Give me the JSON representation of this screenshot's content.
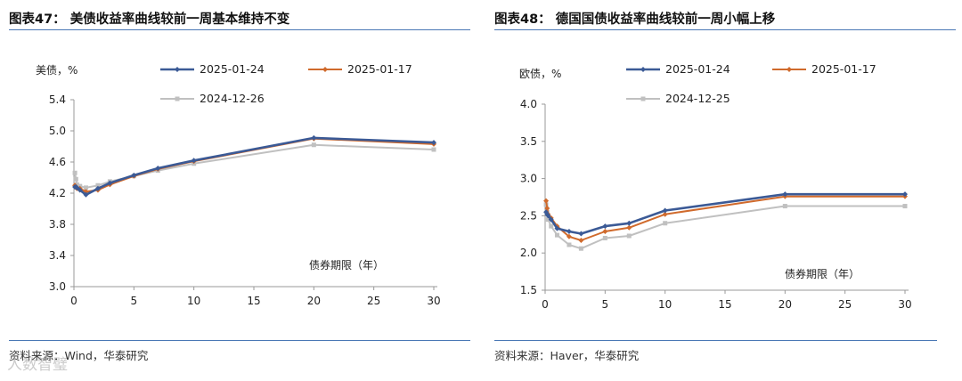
{
  "chart_data": [
    {
      "type": "line",
      "title": "图表47： 美债收益率曲线较前一周基本维持不变",
      "ylabel": "美债，%",
      "xlabel": "债券期限（年）",
      "source": "资料来源：Wind，华泰研究",
      "xlim": [
        0,
        30
      ],
      "ylim": [
        3.0,
        5.4
      ],
      "xticks": [
        0,
        5,
        10,
        15,
        20,
        25,
        30
      ],
      "yticks": [
        3.0,
        3.4,
        3.8,
        4.2,
        4.6,
        5.0,
        5.4
      ],
      "ytick_labels": [
        "3.0",
        "3.4",
        "3.8",
        "4.2",
        "4.6",
        "5.0",
        "5.4"
      ],
      "legend": "top",
      "x": [
        0.08,
        0.17,
        0.25,
        0.5,
        1,
        2,
        3,
        5,
        7,
        10,
        20,
        30
      ],
      "series": [
        {
          "name": "2025-01-24",
          "color": "#3b5a96",
          "values": [
            4.28,
            4.28,
            4.27,
            4.24,
            4.18,
            4.26,
            4.33,
            4.43,
            4.52,
            4.62,
            4.91,
            4.85
          ]
        },
        {
          "name": "2025-01-17",
          "color": "#d06a2c",
          "values": [
            4.3,
            4.28,
            4.26,
            4.26,
            4.22,
            4.24,
            4.31,
            4.42,
            4.51,
            4.61,
            4.9,
            4.83
          ]
        },
        {
          "name": "2024-12-26",
          "color": "#c0c0c0",
          "values": [
            4.46,
            4.38,
            4.31,
            4.29,
            4.27,
            4.3,
            4.35,
            4.42,
            4.49,
            4.58,
            4.82,
            4.76
          ]
        }
      ]
    },
    {
      "type": "line",
      "title": "图表48： 德国国债收益率曲线较前一周小幅上移",
      "ylabel": "欧债，%",
      "xlabel": "债券期限（年）",
      "source": "资料来源：Haver，华泰研究",
      "xlim": [
        0,
        30
      ],
      "ylim": [
        1.5,
        4.0
      ],
      "xticks": [
        0,
        5,
        10,
        15,
        20,
        25,
        30
      ],
      "yticks": [
        1.5,
        2.0,
        2.5,
        3.0,
        3.5,
        4.0
      ],
      "ytick_labels": [
        "1.5",
        "2.0",
        "2.5",
        "3.0",
        "3.5",
        "4.0"
      ],
      "legend": "top",
      "x": [
        0.08,
        0.17,
        0.25,
        0.5,
        1,
        2,
        3,
        5,
        7,
        10,
        20,
        30
      ],
      "series": [
        {
          "name": "2025-01-24",
          "color": "#3b5a96",
          "values": [
            2.55,
            2.52,
            2.5,
            2.45,
            2.33,
            2.29,
            2.26,
            2.36,
            2.4,
            2.57,
            2.79,
            2.79
          ]
        },
        {
          "name": "2025-01-17",
          "color": "#d06a2c",
          "values": [
            2.7,
            2.6,
            2.52,
            2.47,
            2.36,
            2.22,
            2.17,
            2.29,
            2.34,
            2.52,
            2.76,
            2.76
          ]
        },
        {
          "name": "2024-12-25",
          "color": "#c0c0c0",
          "values": [
            2.65,
            2.55,
            2.45,
            2.36,
            2.24,
            2.11,
            2.06,
            2.2,
            2.23,
            2.4,
            2.63,
            2.63
          ]
        }
      ]
    }
  ],
  "watermark": "人数智璧"
}
